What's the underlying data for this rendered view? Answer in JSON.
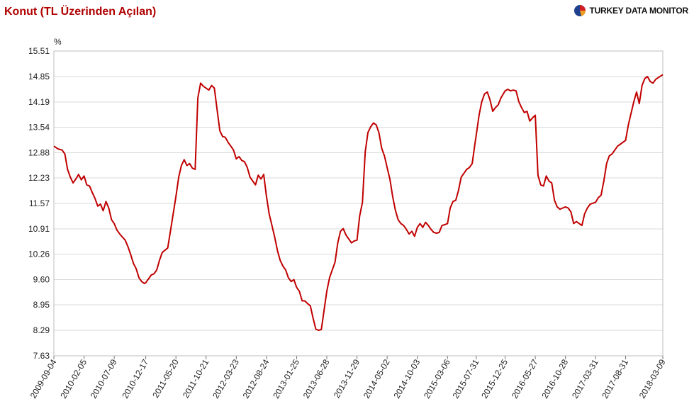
{
  "header": {
    "title": "Konut (TL Üzerinden Açılan)",
    "brand": "TURKEY DATA MONITOR"
  },
  "colors": {
    "line": "#c00000",
    "grid": "#d9d9d9",
    "axis": "#bdbdbd",
    "title": "#b00000"
  },
  "chart_data": {
    "type": "line",
    "title": "Konut (TL Üzerinden Açılan)",
    "ylabel": "%",
    "xlabel": "",
    "ylim": [
      7.63,
      15.51
    ],
    "y_ticks": [
      "15.51",
      "14.85",
      "14.19",
      "13.54",
      "12.88",
      "12.23",
      "11.57",
      "10.91",
      "10.26",
      "9.60",
      "8.95",
      "8.29",
      "7.63"
    ],
    "x_ticks": [
      "2009-09-04",
      "2010-02-05",
      "2010-07-09",
      "2010-12-17",
      "2011-05-20",
      "2011-10-21",
      "2012-03-23",
      "2012-08-24",
      "2013-01-25",
      "2013-06-28",
      "2013-11-29",
      "2014-05-02",
      "2014-10-03",
      "2015-03-06",
      "2015-07-31",
      "2015-12-25",
      "2016-05-27",
      "2016-10-28",
      "2017-03-31",
      "2017-08-31",
      "2018-03-09"
    ],
    "grid": true,
    "legend": "none",
    "series": [
      {
        "points": [
          [
            "2009-09-04",
            13.05
          ],
          [
            "2009-09-25",
            12.98
          ],
          [
            "2009-10-16",
            12.95
          ],
          [
            "2009-10-30",
            12.85
          ],
          [
            "2009-11-13",
            12.45
          ],
          [
            "2009-11-27",
            12.25
          ],
          [
            "2009-12-11",
            12.1
          ],
          [
            "2009-12-25",
            12.2
          ],
          [
            "2010-01-08",
            12.32
          ],
          [
            "2010-01-22",
            12.18
          ],
          [
            "2010-02-05",
            12.28
          ],
          [
            "2010-02-19",
            12.05
          ],
          [
            "2010-03-05",
            12.02
          ],
          [
            "2010-03-19",
            11.85
          ],
          [
            "2010-04-02",
            11.7
          ],
          [
            "2010-04-16",
            11.5
          ],
          [
            "2010-04-30",
            11.55
          ],
          [
            "2010-05-14",
            11.38
          ],
          [
            "2010-05-28",
            11.62
          ],
          [
            "2010-06-11",
            11.45
          ],
          [
            "2010-06-25",
            11.15
          ],
          [
            "2010-07-09",
            11.05
          ],
          [
            "2010-07-23",
            10.88
          ],
          [
            "2010-08-06",
            10.78
          ],
          [
            "2010-08-20",
            10.7
          ],
          [
            "2010-09-03",
            10.62
          ],
          [
            "2010-09-17",
            10.45
          ],
          [
            "2010-10-01",
            10.25
          ],
          [
            "2010-10-15",
            10.02
          ],
          [
            "2010-10-29",
            9.88
          ],
          [
            "2010-11-12",
            9.65
          ],
          [
            "2010-11-26",
            9.55
          ],
          [
            "2010-12-10",
            9.5
          ],
          [
            "2010-12-17",
            9.52
          ],
          [
            "2010-12-31",
            9.62
          ],
          [
            "2011-01-14",
            9.72
          ],
          [
            "2011-01-28",
            9.75
          ],
          [
            "2011-02-11",
            9.85
          ],
          [
            "2011-02-25",
            10.1
          ],
          [
            "2011-03-11",
            10.3
          ],
          [
            "2011-03-25",
            10.36
          ],
          [
            "2011-04-08",
            10.42
          ],
          [
            "2011-04-22",
            10.85
          ],
          [
            "2011-05-06",
            11.3
          ],
          [
            "2011-05-20",
            11.75
          ],
          [
            "2011-06-03",
            12.25
          ],
          [
            "2011-06-17",
            12.55
          ],
          [
            "2011-07-01",
            12.7
          ],
          [
            "2011-07-15",
            12.55
          ],
          [
            "2011-07-29",
            12.6
          ],
          [
            "2011-08-12",
            12.48
          ],
          [
            "2011-08-26",
            12.45
          ],
          [
            "2011-09-09",
            14.3
          ],
          [
            "2011-09-23",
            14.68
          ],
          [
            "2011-10-07",
            14.6
          ],
          [
            "2011-10-21",
            14.55
          ],
          [
            "2011-11-04",
            14.5
          ],
          [
            "2011-11-18",
            14.62
          ],
          [
            "2011-12-02",
            14.55
          ],
          [
            "2011-12-16",
            14.0
          ],
          [
            "2011-12-30",
            13.45
          ],
          [
            "2012-01-13",
            13.3
          ],
          [
            "2012-01-27",
            13.28
          ],
          [
            "2012-02-10",
            13.15
          ],
          [
            "2012-02-24",
            13.05
          ],
          [
            "2012-03-09",
            12.95
          ],
          [
            "2012-03-23",
            12.72
          ],
          [
            "2012-04-06",
            12.78
          ],
          [
            "2012-04-20",
            12.68
          ],
          [
            "2012-05-04",
            12.65
          ],
          [
            "2012-05-18",
            12.5
          ],
          [
            "2012-06-01",
            12.25
          ],
          [
            "2012-06-15",
            12.15
          ],
          [
            "2012-06-29",
            12.05
          ],
          [
            "2012-07-13",
            12.3
          ],
          [
            "2012-07-27",
            12.2
          ],
          [
            "2012-08-10",
            12.32
          ],
          [
            "2012-08-24",
            11.75
          ],
          [
            "2012-09-07",
            11.3
          ],
          [
            "2012-09-21",
            11.0
          ],
          [
            "2012-10-05",
            10.7
          ],
          [
            "2012-10-19",
            10.35
          ],
          [
            "2012-11-02",
            10.1
          ],
          [
            "2012-11-16",
            9.95
          ],
          [
            "2012-11-30",
            9.85
          ],
          [
            "2012-12-14",
            9.65
          ],
          [
            "2012-12-28",
            9.55
          ],
          [
            "2013-01-11",
            9.6
          ],
          [
            "2013-01-25",
            9.4
          ],
          [
            "2013-02-08",
            9.3
          ],
          [
            "2013-02-22",
            9.05
          ],
          [
            "2013-03-08",
            9.05
          ],
          [
            "2013-03-22",
            8.98
          ],
          [
            "2013-04-05",
            8.92
          ],
          [
            "2013-04-19",
            8.6
          ],
          [
            "2013-05-03",
            8.32
          ],
          [
            "2013-05-17",
            8.29
          ],
          [
            "2013-05-31",
            8.31
          ],
          [
            "2013-06-14",
            8.8
          ],
          [
            "2013-06-28",
            9.3
          ],
          [
            "2013-07-12",
            9.65
          ],
          [
            "2013-07-26",
            9.85
          ],
          [
            "2013-08-09",
            10.05
          ],
          [
            "2013-08-23",
            10.55
          ],
          [
            "2013-09-06",
            10.85
          ],
          [
            "2013-09-20",
            10.92
          ],
          [
            "2013-10-04",
            10.75
          ],
          [
            "2013-10-18",
            10.65
          ],
          [
            "2013-11-01",
            10.55
          ],
          [
            "2013-11-15",
            10.6
          ],
          [
            "2013-11-29",
            10.62
          ],
          [
            "2013-12-13",
            11.25
          ],
          [
            "2013-12-27",
            11.6
          ],
          [
            "2014-01-10",
            12.9
          ],
          [
            "2014-01-24",
            13.4
          ],
          [
            "2014-02-07",
            13.55
          ],
          [
            "2014-02-21",
            13.65
          ],
          [
            "2014-03-07",
            13.6
          ],
          [
            "2014-03-21",
            13.4
          ],
          [
            "2014-04-04",
            13.0
          ],
          [
            "2014-04-18",
            12.8
          ],
          [
            "2014-05-02",
            12.5
          ],
          [
            "2014-05-16",
            12.2
          ],
          [
            "2014-05-30",
            11.75
          ],
          [
            "2014-06-13",
            11.4
          ],
          [
            "2014-06-27",
            11.15
          ],
          [
            "2014-07-11",
            11.05
          ],
          [
            "2014-07-25",
            11.0
          ],
          [
            "2014-08-08",
            10.9
          ],
          [
            "2014-08-22",
            10.78
          ],
          [
            "2014-09-05",
            10.85
          ],
          [
            "2014-09-19",
            10.72
          ],
          [
            "2014-10-03",
            10.95
          ],
          [
            "2014-10-17",
            11.05
          ],
          [
            "2014-10-31",
            10.95
          ],
          [
            "2014-11-14",
            11.08
          ],
          [
            "2014-11-28",
            11.0
          ],
          [
            "2014-12-12",
            10.9
          ],
          [
            "2014-12-26",
            10.82
          ],
          [
            "2015-01-09",
            10.8
          ],
          [
            "2015-01-23",
            10.82
          ],
          [
            "2015-02-06",
            11.0
          ],
          [
            "2015-02-20",
            11.02
          ],
          [
            "2015-03-06",
            11.05
          ],
          [
            "2015-03-20",
            11.45
          ],
          [
            "2015-04-03",
            11.62
          ],
          [
            "2015-04-17",
            11.65
          ],
          [
            "2015-05-01",
            11.9
          ],
          [
            "2015-05-15",
            12.25
          ],
          [
            "2015-05-29",
            12.35
          ],
          [
            "2015-06-12",
            12.45
          ],
          [
            "2015-06-26",
            12.5
          ],
          [
            "2015-07-10",
            12.6
          ],
          [
            "2015-07-24",
            13.1
          ],
          [
            "2015-07-31",
            13.35
          ],
          [
            "2015-08-14",
            13.85
          ],
          [
            "2015-08-28",
            14.2
          ],
          [
            "2015-09-11",
            14.4
          ],
          [
            "2015-09-25",
            14.45
          ],
          [
            "2015-10-09",
            14.25
          ],
          [
            "2015-10-23",
            13.95
          ],
          [
            "2015-11-06",
            14.05
          ],
          [
            "2015-11-20",
            14.12
          ],
          [
            "2015-12-04",
            14.3
          ],
          [
            "2015-12-25",
            14.48
          ],
          [
            "2016-01-08",
            14.52
          ],
          [
            "2016-01-22",
            14.48
          ],
          [
            "2016-02-05",
            14.5
          ],
          [
            "2016-02-19",
            14.48
          ],
          [
            "2016-03-04",
            14.2
          ],
          [
            "2016-03-18",
            14.05
          ],
          [
            "2016-04-01",
            13.92
          ],
          [
            "2016-04-15",
            13.95
          ],
          [
            "2016-04-29",
            13.7
          ],
          [
            "2016-05-13",
            13.78
          ],
          [
            "2016-05-27",
            13.85
          ],
          [
            "2016-06-10",
            12.3
          ],
          [
            "2016-06-24",
            12.05
          ],
          [
            "2016-07-08",
            12.02
          ],
          [
            "2016-07-22",
            12.28
          ],
          [
            "2016-08-05",
            12.15
          ],
          [
            "2016-08-19",
            12.1
          ],
          [
            "2016-09-02",
            11.65
          ],
          [
            "2016-09-16",
            11.48
          ],
          [
            "2016-09-30",
            11.42
          ],
          [
            "2016-10-14",
            11.45
          ],
          [
            "2016-10-28",
            11.48
          ],
          [
            "2016-11-11",
            11.45
          ],
          [
            "2016-11-25",
            11.35
          ],
          [
            "2016-12-09",
            11.05
          ],
          [
            "2016-12-23",
            11.1
          ],
          [
            "2017-01-06",
            11.05
          ],
          [
            "2017-01-20",
            11.0
          ],
          [
            "2017-02-03",
            11.3
          ],
          [
            "2017-02-17",
            11.45
          ],
          [
            "2017-03-03",
            11.55
          ],
          [
            "2017-03-31",
            11.6
          ],
          [
            "2017-04-14",
            11.72
          ],
          [
            "2017-04-28",
            11.78
          ],
          [
            "2017-05-12",
            12.15
          ],
          [
            "2017-05-26",
            12.6
          ],
          [
            "2017-06-09",
            12.8
          ],
          [
            "2017-06-23",
            12.85
          ],
          [
            "2017-07-07",
            12.95
          ],
          [
            "2017-07-21",
            13.05
          ],
          [
            "2017-08-04",
            13.1
          ],
          [
            "2017-08-31",
            13.2
          ],
          [
            "2017-09-14",
            13.6
          ],
          [
            "2017-09-28",
            13.9
          ],
          [
            "2017-10-12",
            14.2
          ],
          [
            "2017-10-26",
            14.45
          ],
          [
            "2017-11-09",
            14.15
          ],
          [
            "2017-11-23",
            14.62
          ],
          [
            "2017-12-07",
            14.8
          ],
          [
            "2017-12-21",
            14.85
          ],
          [
            "2018-01-04",
            14.72
          ],
          [
            "2018-01-18",
            14.68
          ],
          [
            "2018-02-01",
            14.78
          ],
          [
            "2018-03-09",
            14.9
          ]
        ]
      }
    ]
  }
}
